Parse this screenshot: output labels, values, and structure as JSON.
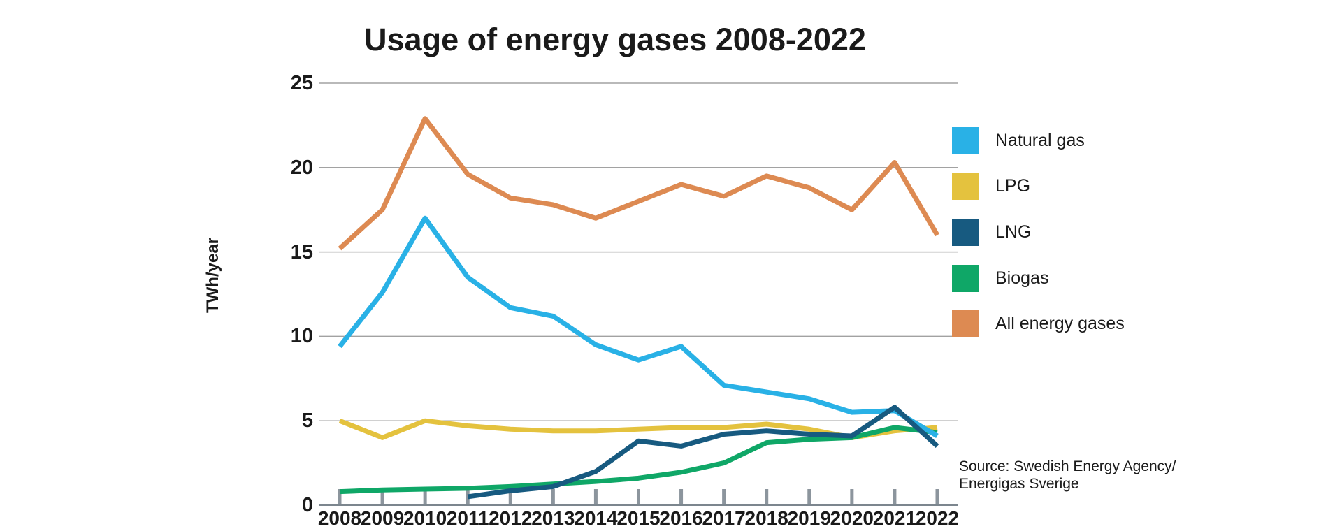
{
  "title": "Usage of energy gases 2008-2022",
  "ylabel": "TWh/year",
  "source": {
    "line1": "Source: Swedish Energy Agency/",
    "line2": "Energigas Sverige"
  },
  "colors": {
    "text": "#1a1a1a",
    "gridline": "#a2a2a2",
    "axis_line": "#7c868e",
    "tick_mark": "#8c959d",
    "natural_gas": "#29b1e6",
    "lpg": "#e4c23e",
    "lng": "#175a80",
    "biogas": "#0fa767",
    "all_energy_gases": "#dd8a52"
  },
  "legend": [
    "Natural gas",
    "LPG",
    "LNG",
    "Biogas",
    "All energy gases"
  ],
  "chart_data": {
    "type": "line",
    "title": "Usage of energy gases 2008-2022",
    "xlabel": "",
    "ylabel": "TWh/year",
    "x": [
      2008,
      2009,
      2010,
      2011,
      2012,
      2013,
      2014,
      2015,
      2016,
      2017,
      2018,
      2019,
      2020,
      2021,
      2022
    ],
    "ylim": [
      0,
      25
    ],
    "yticks": [
      0,
      5,
      10,
      15,
      20,
      25
    ],
    "grid": "horizontal",
    "legend_position": "right",
    "series": [
      {
        "name": "Natural gas",
        "color": "#29b1e6",
        "values": [
          9.4,
          12.6,
          17.0,
          13.5,
          11.7,
          11.2,
          9.5,
          8.6,
          9.4,
          7.1,
          6.7,
          6.3,
          5.5,
          5.6,
          4.1
        ]
      },
      {
        "name": "LPG",
        "color": "#e4c23e",
        "values": [
          5.0,
          4.0,
          5.0,
          4.7,
          4.5,
          4.4,
          4.4,
          4.5,
          4.6,
          4.6,
          4.8,
          4.5,
          4.0,
          4.4,
          4.6
        ]
      },
      {
        "name": "LNG",
        "color": "#175a80",
        "values": [
          null,
          null,
          null,
          0.5,
          0.85,
          1.1,
          2.0,
          3.8,
          3.5,
          4.2,
          4.4,
          4.2,
          4.1,
          5.8,
          3.5
        ]
      },
      {
        "name": "Biogas",
        "color": "#0fa767",
        "values": [
          0.8,
          0.9,
          0.95,
          1.0,
          1.1,
          1.25,
          1.4,
          1.6,
          1.95,
          2.5,
          3.7,
          3.9,
          4.0,
          4.6,
          4.3
        ]
      },
      {
        "name": "All energy gases",
        "color": "#dd8a52",
        "values": [
          15.2,
          17.5,
          22.9,
          19.6,
          18.2,
          17.8,
          17.0,
          18.0,
          19.0,
          18.3,
          19.5,
          18.8,
          17.5,
          20.3,
          16.0
        ]
      }
    ],
    "source": "Source: Swedish Energy Agency/ Energigas Sverige"
  }
}
